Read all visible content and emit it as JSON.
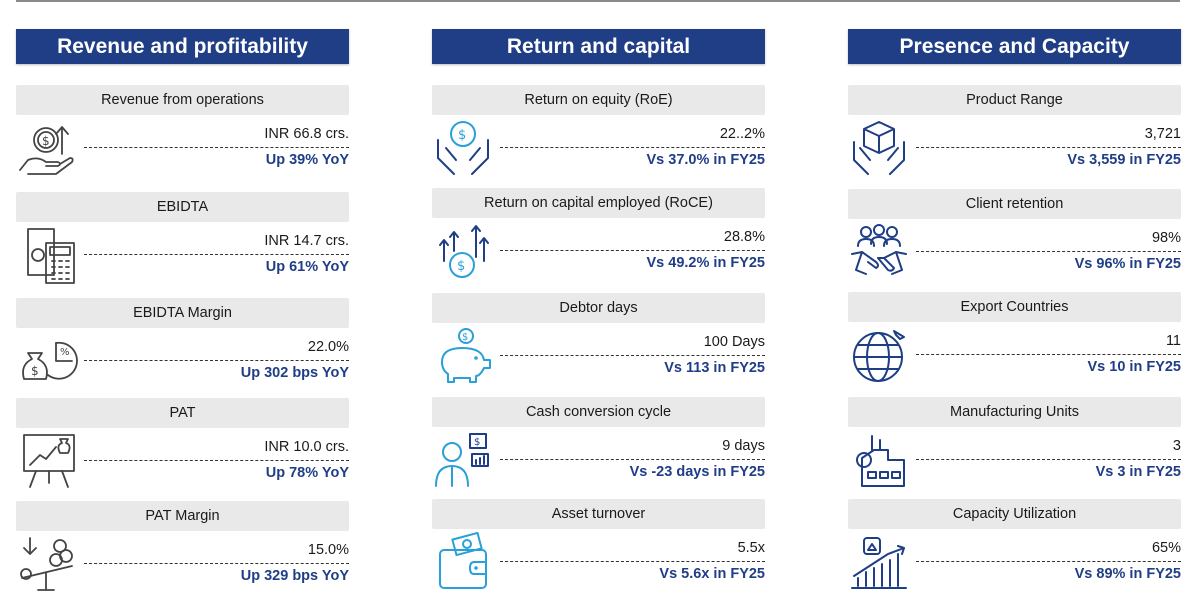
{
  "columns": [
    {
      "title": "Revenue and profitability",
      "metrics": [
        {
          "label": "Revenue from operations",
          "value": "INR 66.8 crs.",
          "compare": "Up 39% YoY",
          "icon": "money-hand-icon"
        },
        {
          "label": "EBIDTA",
          "value": "INR 14.7 crs.",
          "compare": "Up 61% YoY",
          "icon": "calculator-icon"
        },
        {
          "label": "EBIDTA Margin",
          "value": "22.0%",
          "compare": "Up 302 bps YoY",
          "icon": "money-bag-pie-icon"
        },
        {
          "label": "PAT",
          "value": "INR 10.0 crs.",
          "compare": "Up 78% YoY",
          "icon": "presentation-board-icon"
        },
        {
          "label": "PAT Margin",
          "value": "15.0%",
          "compare": "Up 329 bps YoY",
          "icon": "balance-scale-icon"
        }
      ]
    },
    {
      "title": "Return and capital",
      "metrics": [
        {
          "label": "Return on equity (RoE)",
          "value": "22..2%",
          "compare": "Vs 37.0% in FY25",
          "icon": "coin-hands-icon"
        },
        {
          "label": "Return on capital employed (RoCE)",
          "value": "28.8%",
          "compare": "Vs 49.2% in FY25",
          "icon": "growth-coin-icon"
        },
        {
          "label": "Debtor days",
          "value": "100 Days",
          "compare": "Vs 113 in FY25",
          "icon": "piggy-bank-icon"
        },
        {
          "label": "Cash conversion cycle",
          "value": "9 days",
          "compare": "Vs -23 days in FY25",
          "icon": "businessman-icon"
        },
        {
          "label": "Asset turnover",
          "value": "5.5x",
          "compare": "Vs 5.6x in FY25",
          "icon": "wallet-icon"
        }
      ]
    },
    {
      "title": "Presence and Capacity",
      "metrics": [
        {
          "label": "Product Range",
          "value": "3,721",
          "compare": "Vs 3,559 in FY25",
          "icon": "box-hands-icon"
        },
        {
          "label": "Client retention",
          "value": "98%",
          "compare": "Vs 96% in FY25",
          "icon": "team-handshake-icon"
        },
        {
          "label": "Export Countries",
          "value": "11",
          "compare": "Vs 10 in FY25",
          "icon": "globe-plane-icon"
        },
        {
          "label": "Manufacturing Units",
          "value": "3",
          "compare": "Vs 3 in FY25",
          "icon": "factory-icon"
        },
        {
          "label": "Capacity Utilization",
          "value": "65%",
          "compare": "Vs 89% in FY25",
          "icon": "bar-growth-icon"
        }
      ]
    }
  ],
  "colors": {
    "header": "#1f3e86",
    "accent": "#1f3e86",
    "label_bg": "#e9e9e9"
  }
}
